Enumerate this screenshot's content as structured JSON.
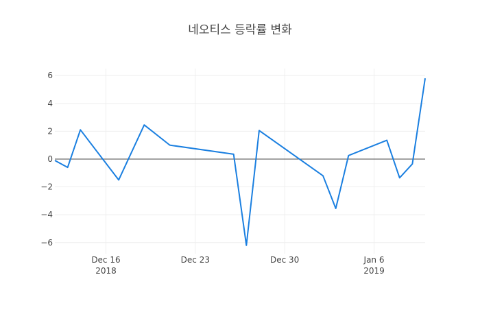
{
  "chart_data": {
    "type": "line",
    "title": "네오티스 등락률 변화",
    "xlabel": "",
    "ylabel": "",
    "x": [
      "2018-12-12",
      "2018-12-13",
      "2018-12-14",
      "2018-12-17",
      "2018-12-19",
      "2018-12-21",
      "2018-12-26",
      "2018-12-27",
      "2018-12-28",
      "2019-01-02",
      "2019-01-03",
      "2019-01-04",
      "2019-01-07",
      "2019-01-08",
      "2019-01-09",
      "2019-01-10"
    ],
    "series": [
      {
        "name": "",
        "color": "#1f77b4",
        "values": [
          -0.1,
          -0.6,
          2.1,
          -1.5,
          2.45,
          1.0,
          0.35,
          -6.2,
          2.05,
          -1.2,
          -3.55,
          0.25,
          1.35,
          -1.35,
          -0.35,
          5.8
        ]
      }
    ],
    "xlim": [
      "2018-12-12",
      "2019-01-10"
    ],
    "ylim": [
      -6.8,
      6.5
    ],
    "x_ticks": [
      {
        "date": "2018-12-16",
        "label": "Dec 16",
        "sub": "2018"
      },
      {
        "date": "2018-12-23",
        "label": "Dec 23",
        "sub": ""
      },
      {
        "date": "2018-12-30",
        "label": "Dec 30",
        "sub": ""
      },
      {
        "date": "2019-01-06",
        "label": "Jan 6",
        "sub": "2019"
      }
    ],
    "y_ticks": [
      -6,
      -4,
      -2,
      0,
      2,
      4,
      6
    ],
    "grid": true,
    "legend": "none",
    "line_color": "#1a7fe0"
  }
}
